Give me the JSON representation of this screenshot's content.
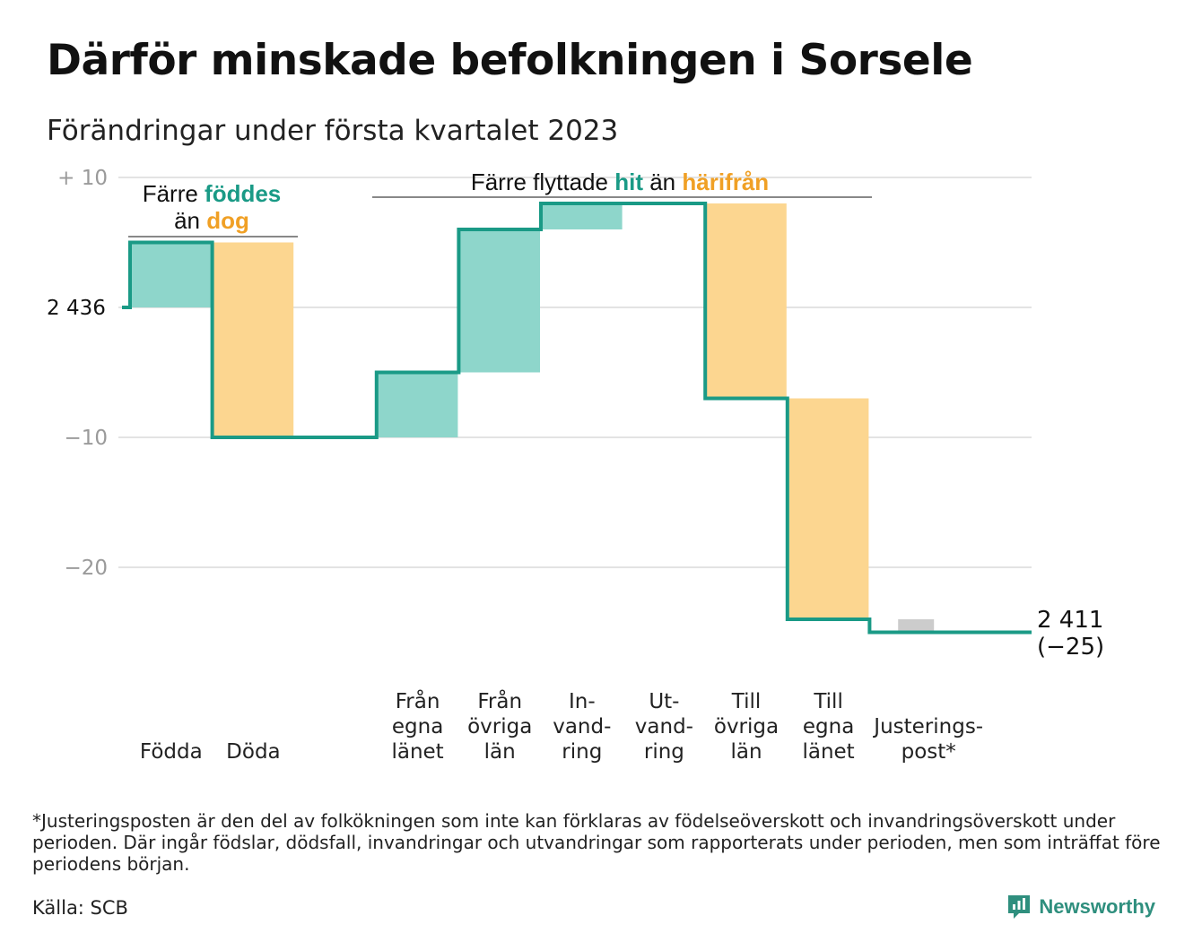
{
  "title": "Därför minskade befolkningen i Sorsele",
  "subtitle": "Förändringar under första kvartalet 2023",
  "chart_data": {
    "type": "waterfall",
    "start_label": "2 436",
    "start_value": 2436,
    "end_value": 2411,
    "end_label_line1": "2 411",
    "end_label_line2": "(−25)",
    "y_axis": {
      "ticks": [
        {
          "value": 10,
          "label": "+ 10"
        },
        {
          "value": 0,
          "label": ""
        },
        {
          "value": -10,
          "label": "−10"
        },
        {
          "value": -20,
          "label": "−20"
        }
      ],
      "ylim": [
        -26,
        11
      ]
    },
    "steps": [
      {
        "lines": [
          "Födda"
        ],
        "change": 5,
        "kind": "in"
      },
      {
        "lines": [
          "Döda"
        ],
        "change": -15,
        "kind": "out"
      },
      {
        "lines": [],
        "change": 0,
        "kind": "gap"
      },
      {
        "lines": [
          "Från",
          "egna",
          "länet"
        ],
        "change": 5,
        "kind": "in"
      },
      {
        "lines": [
          "Från",
          "övriga",
          "län"
        ],
        "change": 11,
        "kind": "in"
      },
      {
        "lines": [
          "In-",
          "vand-",
          "ring"
        ],
        "change": 2,
        "kind": "in"
      },
      {
        "lines": [
          "Ut-",
          "vand-",
          "ring"
        ],
        "change": 0,
        "kind": "out"
      },
      {
        "lines": [
          "Till",
          "övriga",
          "län"
        ],
        "change": -15,
        "kind": "out"
      },
      {
        "lines": [
          "Till",
          "egna",
          "länet"
        ],
        "change": -17,
        "kind": "out"
      },
      {
        "lines": [
          "Justerings-",
          "post*"
        ],
        "change": -1,
        "kind": "adj"
      }
    ],
    "annotations": {
      "births": {
        "line1_pre": "Färre ",
        "line1_hi": "föddes",
        "line2_pre": "än ",
        "line2_hi": "dog"
      },
      "moves": {
        "pre": "Färre flyttade ",
        "hi1": "hit",
        "mid": " än ",
        "hi2": "härifrån"
      }
    },
    "colors": {
      "line": "#1a9a86",
      "in": "#8ed6cb",
      "out": "#fcd690",
      "adj": "#cccccc",
      "text_in": "#1a9a86",
      "text_out": "#f0a025",
      "grid": "#e3e3e3"
    }
  },
  "footnote": "*Justeringsposten är den del av folkökningen som inte kan förklaras av födelseöverskott och invandringsöverskott under perioden. Där ingår födslar, dödsfall, invandringar och utvandringar som rapporterats under perioden, men som inträffat före periodens början.",
  "source": "Källa: SCB",
  "brand": {
    "name": "Newsworthy",
    "icon": "chart-bubble-icon",
    "color": "#2f8f7e"
  }
}
